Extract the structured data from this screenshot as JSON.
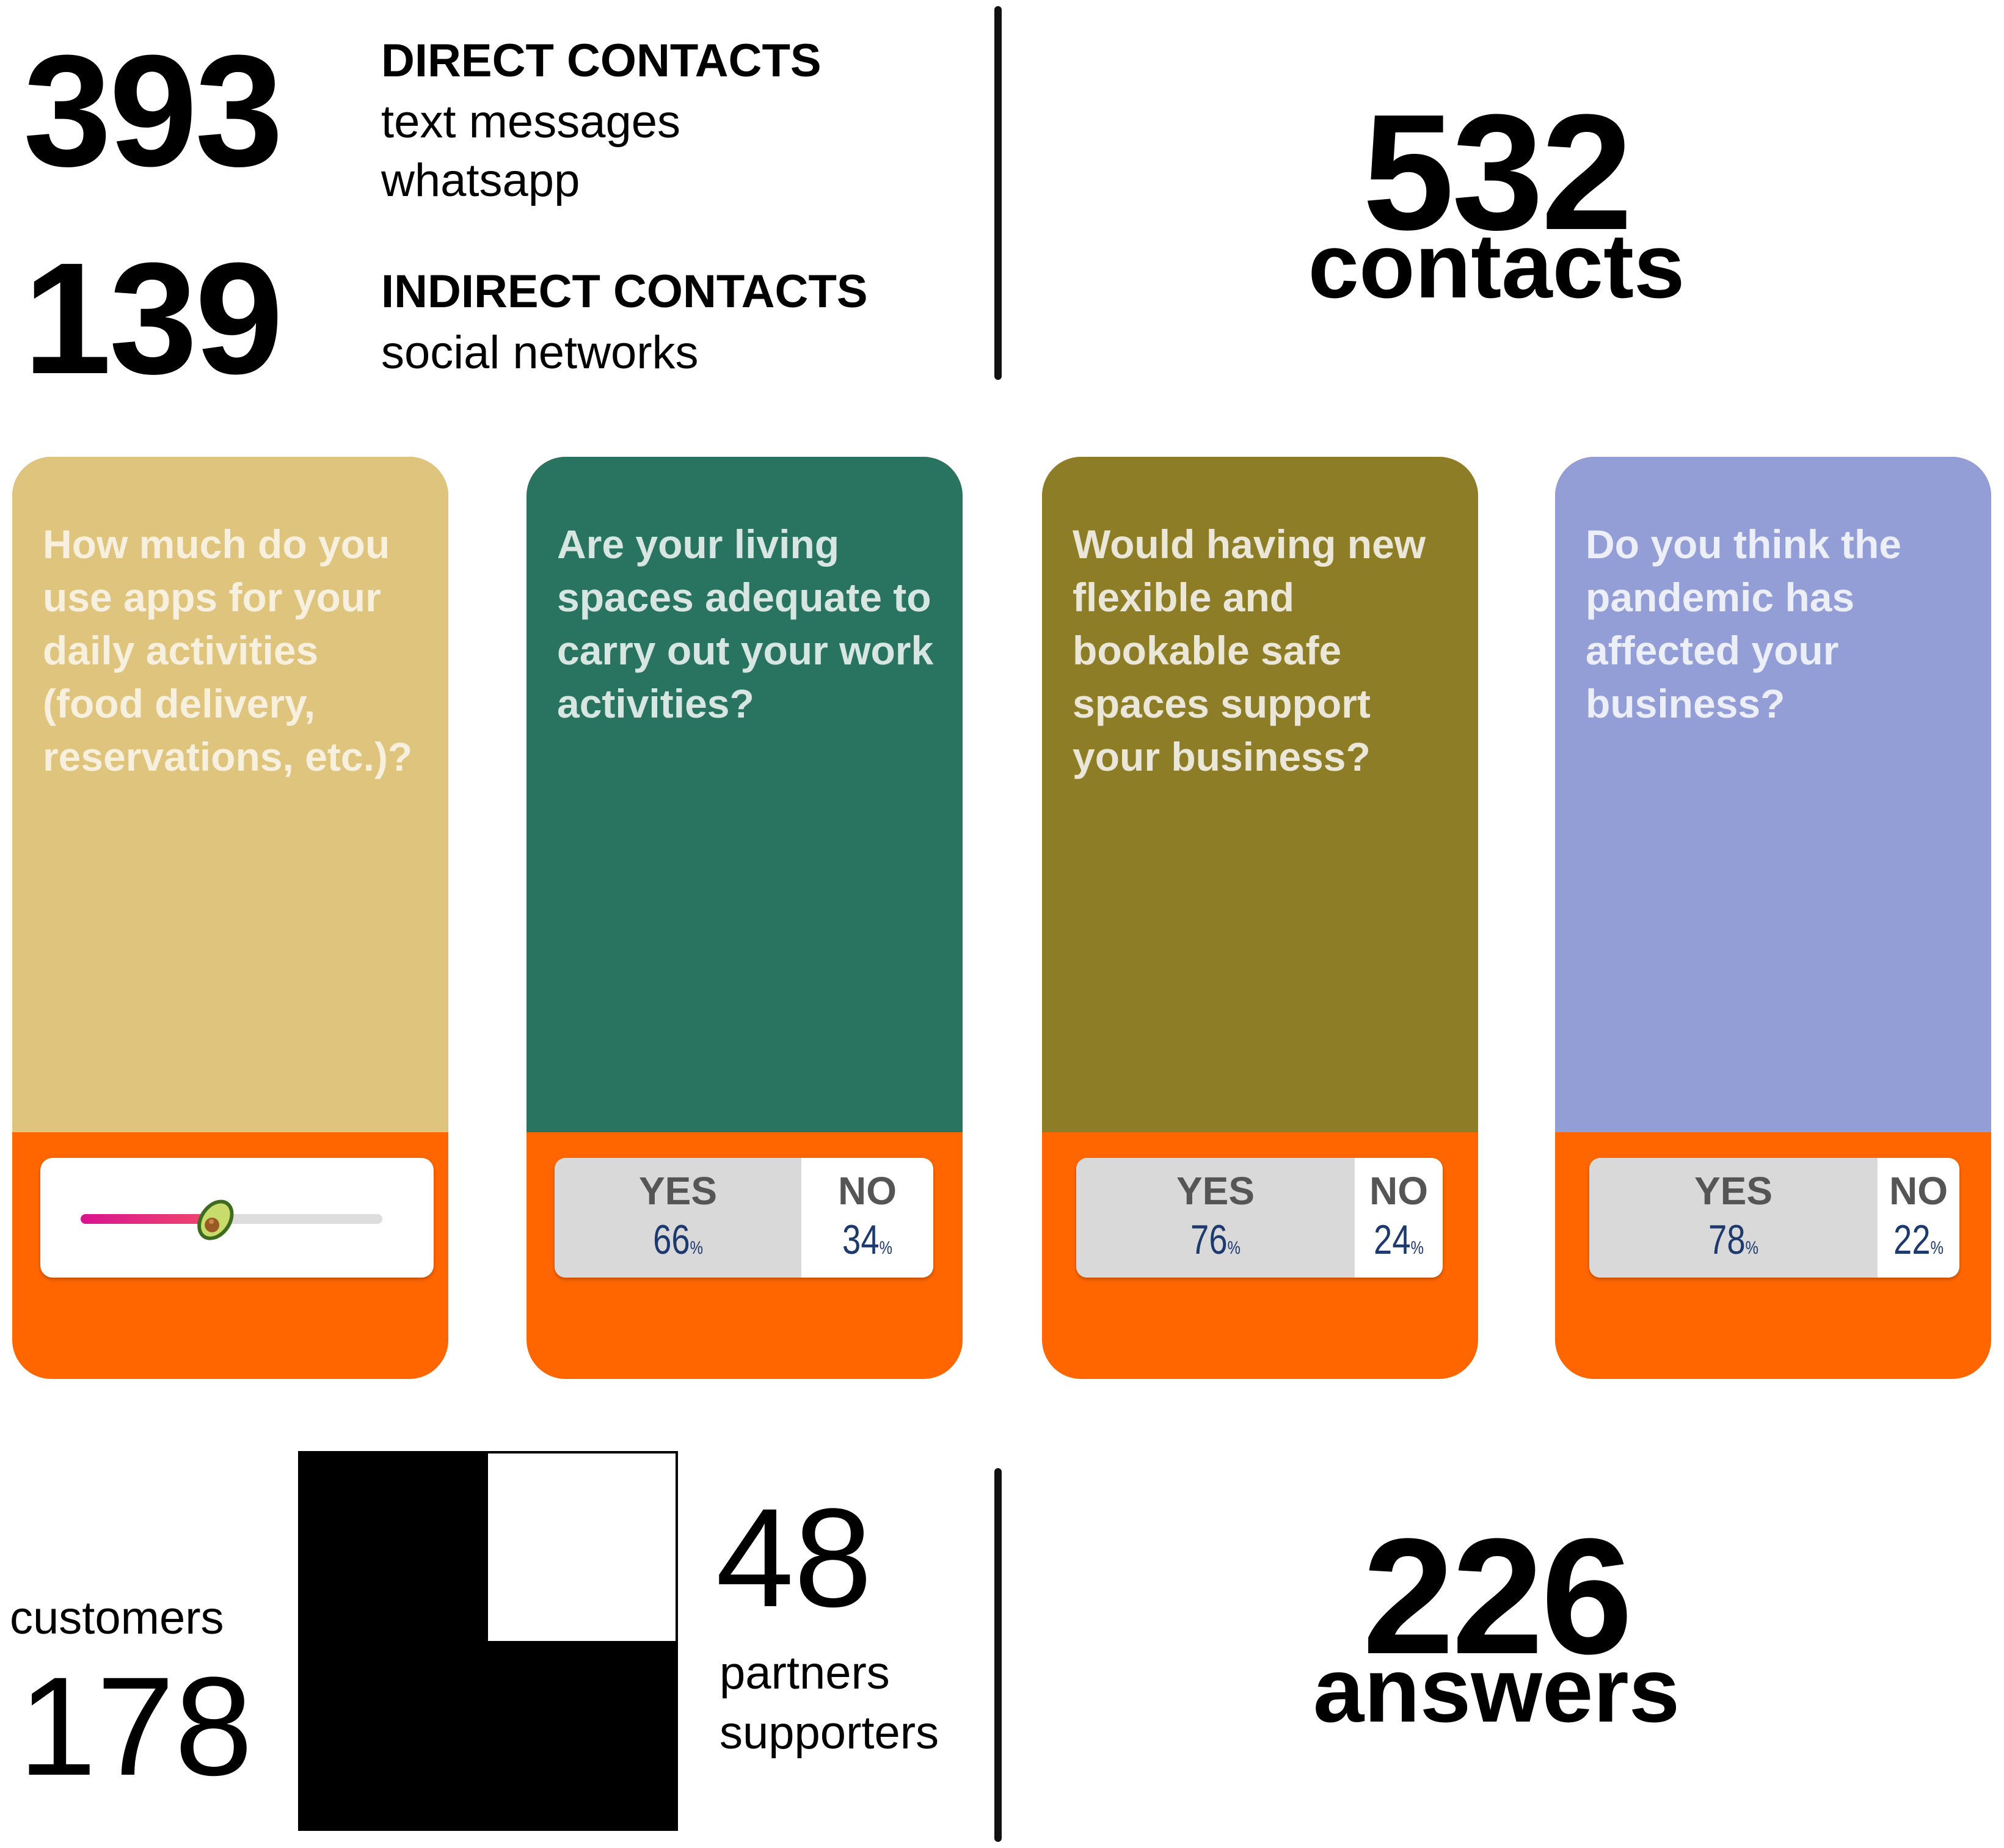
{
  "top": {
    "direct": {
      "count": "393",
      "heading": "DIRECT CONTACTS",
      "channels": [
        "text messages",
        "whatsapp"
      ]
    },
    "indirect": {
      "count": "139",
      "heading": "INDIRECT CONTACTS",
      "channels": [
        "social networks"
      ]
    },
    "total": {
      "count": "532",
      "label": "contacts"
    }
  },
  "cards": [
    {
      "question": "How much do you use apps for your daily activities (food delivery, reservations, etc.)?",
      "color": "#dfc47e",
      "answer_type": "slider",
      "slider_emoji": "avocado-icon",
      "slider_value": 0.45
    },
    {
      "question": "Are your living spaces adequate to carry out your work activities?",
      "color": "#287461",
      "answer_type": "yes-no",
      "yes_label": "YES",
      "yes_value": "66",
      "no_label": "NO",
      "no_value": "34",
      "unit": "%"
    },
    {
      "question": "Would having new flexible and bookable safe spaces support your business?",
      "color": "#8e7d27",
      "answer_type": "yes-no",
      "yes_label": "YES",
      "yes_value": "76",
      "no_label": "NO",
      "no_value": "24",
      "unit": "%"
    },
    {
      "question": "Do you think the pandemic has affected your business?",
      "color": "#949ed6",
      "answer_type": "yes-no",
      "yes_label": "YES",
      "yes_value": "78",
      "no_label": "NO",
      "no_value": "22",
      "unit": "%"
    }
  ],
  "answer_color": "#ff6600",
  "bottom": {
    "customers": {
      "label": "customers",
      "count": "178"
    },
    "partners": {
      "count": "48",
      "labels": [
        "partners",
        "supporters"
      ]
    },
    "total": {
      "count": "226",
      "label": "answers"
    }
  }
}
